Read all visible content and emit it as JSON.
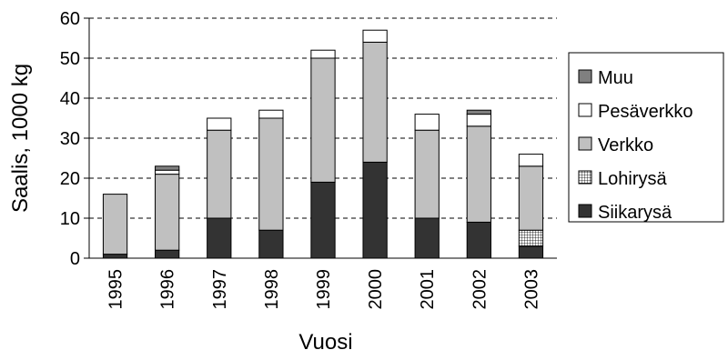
{
  "chart_data": {
    "type": "bar",
    "stacked": true,
    "title": "",
    "xlabel": "Vuosi",
    "ylabel": "Saalis, 1000 kg",
    "ylim": [
      0,
      60
    ],
    "yticks": [
      "0",
      "10",
      "20",
      "30",
      "40",
      "50",
      "60"
    ],
    "grid": "horizontal dashed",
    "legend_position": "right",
    "categories": [
      "1995",
      "1996",
      "1997",
      "1998",
      "1999",
      "2000",
      "2001",
      "2002",
      "2003"
    ],
    "series": [
      {
        "name": "Siikarysä",
        "color": "#333333",
        "pattern": "solid",
        "values": [
          1,
          2,
          10,
          7,
          19,
          24,
          10,
          9,
          3
        ]
      },
      {
        "name": "Lohirysä",
        "color": "#ffffff",
        "pattern": "grid",
        "values": [
          0,
          0,
          0,
          0,
          0,
          0,
          0,
          0,
          4
        ]
      },
      {
        "name": "Verkko",
        "color": "#c0c0c0",
        "pattern": "solid",
        "values": [
          15,
          19,
          22,
          28,
          31,
          30,
          22,
          24,
          16
        ]
      },
      {
        "name": "Pesäverkko",
        "color": "#ffffff",
        "pattern": "solid",
        "values": [
          0,
          1,
          3,
          2,
          2,
          3,
          4,
          3,
          3
        ]
      },
      {
        "name": "Muu",
        "color": "#808080",
        "pattern": "solid",
        "values": [
          0,
          1,
          0,
          0,
          0,
          0,
          0,
          1,
          0
        ]
      }
    ],
    "legend_order": [
      "Muu",
      "Pesäverkko",
      "Verkko",
      "Lohirysä",
      "Siikarysä"
    ]
  }
}
